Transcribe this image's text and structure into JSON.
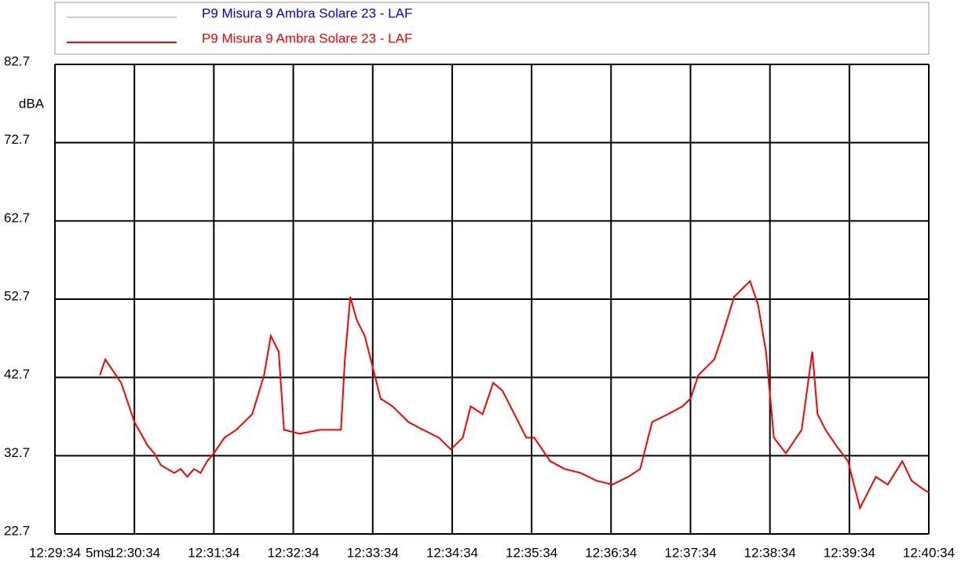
{
  "chart_data": {
    "type": "line",
    "y_label": "dBA",
    "x_label": "5ms",
    "xlim": [
      "12:29:34",
      "12:40:34"
    ],
    "xticks": [
      "12:29:34",
      "12:30:34",
      "12:31:34",
      "12:32:34",
      "12:33:34",
      "12:34:34",
      "12:35:34",
      "12:36:34",
      "12:37:34",
      "12:38:34",
      "12:39:34",
      "12:40:34"
    ],
    "ylim": [
      22.7,
      82.7
    ],
    "yticks": [
      22.7,
      32.7,
      42.7,
      52.7,
      62.7,
      72.7,
      82.7
    ],
    "grid": true,
    "x": [
      "12:30:08",
      "12:30:12",
      "12:30:16",
      "12:30:20",
      "12:30:24",
      "12:30:28",
      "12:30:34",
      "12:30:39",
      "12:30:44",
      "12:30:49",
      "12:30:54",
      "12:30:59",
      "12:31:04",
      "12:31:09",
      "12:31:14",
      "12:31:19",
      "12:31:24",
      "12:31:29",
      "12:31:34",
      "12:31:42",
      "12:31:51",
      "12:32:03",
      "12:32:12",
      "12:32:17",
      "12:32:23",
      "12:32:27",
      "12:32:39",
      "12:32:54",
      "12:33:10",
      "12:33:13",
      "12:33:17",
      "12:33:22",
      "12:33:28",
      "12:33:34",
      "12:33:40",
      "12:33:49",
      "12:34:01",
      "12:34:12",
      "12:34:24",
      "12:34:33",
      "12:34:42",
      "12:34:48",
      "12:34:57",
      "12:35:05",
      "12:35:12",
      "12:35:21",
      "12:35:30",
      "12:35:36",
      "12:35:48",
      "12:35:59",
      "12:36:11",
      "12:36:23",
      "12:36:35",
      "12:36:47",
      "12:36:56",
      "12:37:05",
      "12:37:17",
      "12:37:28",
      "12:37:34",
      "12:37:40",
      "12:37:46",
      "12:37:52",
      "12:37:58",
      "12:38:07",
      "12:38:13",
      "12:38:19",
      "12:38:25",
      "12:38:31",
      "12:38:37",
      "12:38:46",
      "12:38:58",
      "12:39:06",
      "12:39:10",
      "12:39:16",
      "12:39:24",
      "12:39:33",
      "12:39:42",
      "12:39:48",
      "12:39:54",
      "12:40:03",
      "12:40:14",
      "12:40:21",
      "12:40:29",
      "12:40:34"
    ],
    "series": [
      {
        "name": "P9 Misura 9 Ambra Solare 23 - LAF",
        "color": "#8c8cf0",
        "values": [
          null,
          null,
          null,
          null,
          null,
          null,
          null,
          null,
          null,
          null,
          null,
          null,
          null,
          null,
          null,
          null,
          null,
          null,
          null,
          null,
          null,
          null,
          null,
          null,
          null,
          null,
          null,
          null,
          null,
          null,
          null,
          null,
          null,
          null,
          null,
          null,
          null,
          null,
          null,
          null,
          null,
          null,
          null,
          null,
          null,
          null,
          null,
          null,
          null,
          null,
          null,
          null,
          null,
          null,
          null,
          null,
          null,
          null,
          null,
          null,
          null,
          null,
          null,
          null,
          null,
          null,
          null,
          null,
          null,
          null,
          null,
          null,
          null,
          null,
          null,
          null,
          null,
          null,
          null,
          null,
          null,
          null,
          null,
          null
        ]
      },
      {
        "name": "P9 Misura 9 Ambra Solare 23 - LAF",
        "color": "#ff0000",
        "values": [
          43,
          45,
          44,
          43,
          42,
          40,
          37,
          35.5,
          34,
          33,
          31.5,
          31,
          30.5,
          31,
          30,
          31,
          30.5,
          32,
          33,
          35,
          36,
          38,
          43,
          48,
          46,
          36,
          35.5,
          36,
          36,
          45,
          53,
          50,
          48,
          44,
          40,
          39,
          37,
          36,
          35,
          33.5,
          35,
          39,
          38,
          42,
          41,
          38,
          35,
          35,
          32,
          31,
          30.5,
          29.5,
          29,
          30,
          31,
          37,
          38,
          39,
          40,
          43,
          44,
          45,
          48,
          53,
          54,
          55,
          52,
          46,
          35,
          33,
          36,
          46,
          38,
          36,
          34,
          32,
          26,
          28,
          30,
          29,
          32,
          29.5,
          28.5,
          28
        ]
      }
    ]
  }
}
